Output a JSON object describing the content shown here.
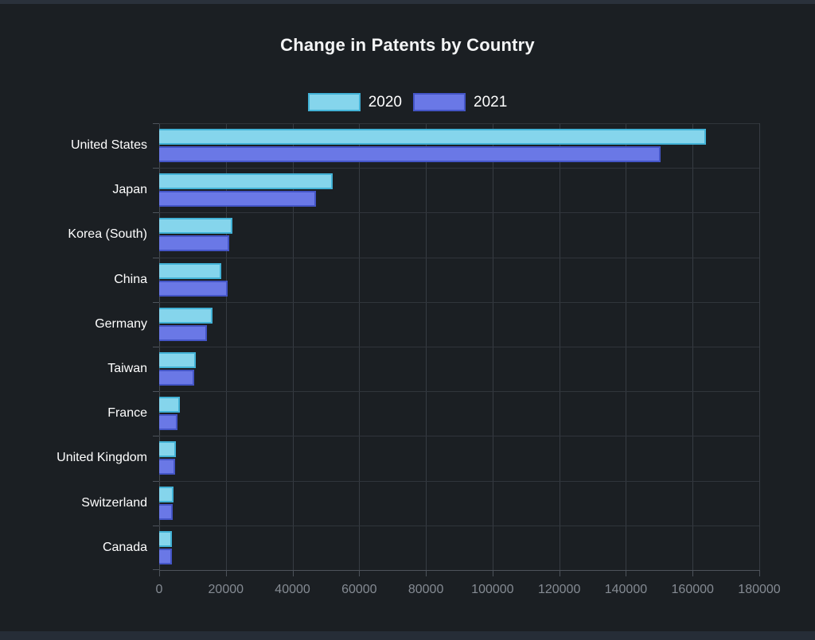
{
  "theme": {
    "page_background": "#1b1f23",
    "top_strip_color": "#2a313b",
    "bottom_strip_color": "#262d37",
    "title_color": "#f4f5f6",
    "category_label_color": "#ffffff",
    "tick_label_color": "#858b93",
    "gridline_color": "#373c43",
    "axis_line_color": "#4d535b"
  },
  "chart_data": {
    "type": "bar",
    "orientation": "horizontal",
    "title": "Change in Patents by Country",
    "legend_position": "top",
    "grid": true,
    "categories": [
      "United States",
      "Japan",
      "Korea (South)",
      "China",
      "Germany",
      "Taiwan",
      "France",
      "United Kingdom",
      "Switzerland",
      "Canada"
    ],
    "category_ids": [
      "united-states",
      "japan",
      "korea-south",
      "china",
      "germany",
      "taiwan",
      "france",
      "united-kingdom",
      "switzerland",
      "canada"
    ],
    "series": [
      {
        "name": "2020",
        "fill_color": "#85d5ec",
        "border_color": "#42b2d6",
        "values": [
          164000,
          52000,
          22000,
          18700,
          16000,
          11100,
          6200,
          5100,
          4200,
          3800
        ]
      },
      {
        "name": "2021",
        "fill_color": "#6a78e6",
        "border_color": "#4455c6",
        "values": [
          150500,
          47000,
          21000,
          20600,
          14300,
          10400,
          5500,
          4800,
          4100,
          3900
        ]
      }
    ],
    "x_axis": {
      "min": 0,
      "max": 180000,
      "tick_interval": 20000,
      "tick_labels": [
        "0",
        "20000",
        "40000",
        "60000",
        "80000",
        "100000",
        "120000",
        "140000",
        "160000",
        "180000"
      ]
    }
  }
}
